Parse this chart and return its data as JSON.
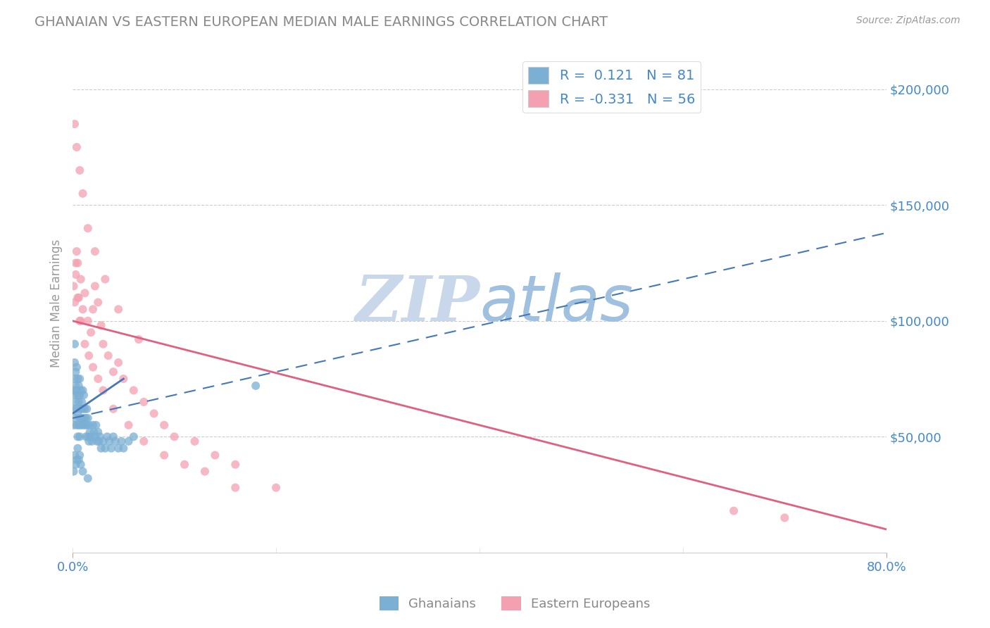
{
  "title": "GHANAIAN VS EASTERN EUROPEAN MEDIAN MALE EARNINGS CORRELATION CHART",
  "source": "Source: ZipAtlas.com",
  "ylabel": "Median Male Earnings",
  "yticks": [
    0,
    50000,
    100000,
    150000,
    200000
  ],
  "ytick_labels": [
    "",
    "$50,000",
    "$100,000",
    "$150,000",
    "$200,000"
  ],
  "xmin": 0.0,
  "xmax": 0.8,
  "ymin": 0,
  "ymax": 215000,
  "R_blue": 0.121,
  "N_blue": 81,
  "R_pink": -0.331,
  "N_pink": 56,
  "blue_color": "#7bafd4",
  "pink_color": "#f4a0b0",
  "blue_line_color": "#4477bb",
  "pink_line_color": "#e06080",
  "watermark_color": "#c8d8ea",
  "legend_label_blue": "Ghanaians",
  "legend_label_pink": "Eastern Europeans",
  "axis_color": "#4488cc",
  "blue_scatter_x": [
    0.001,
    0.001,
    0.001,
    0.002,
    0.002,
    0.002,
    0.002,
    0.003,
    0.003,
    0.003,
    0.003,
    0.004,
    0.004,
    0.004,
    0.004,
    0.005,
    0.005,
    0.005,
    0.005,
    0.006,
    0.006,
    0.006,
    0.007,
    0.007,
    0.007,
    0.007,
    0.008,
    0.008,
    0.008,
    0.009,
    0.009,
    0.01,
    0.01,
    0.01,
    0.011,
    0.011,
    0.012,
    0.012,
    0.013,
    0.013,
    0.014,
    0.014,
    0.015,
    0.015,
    0.016,
    0.016,
    0.017,
    0.018,
    0.019,
    0.02,
    0.021,
    0.022,
    0.023,
    0.024,
    0.025,
    0.026,
    0.027,
    0.028,
    0.03,
    0.032,
    0.034,
    0.036,
    0.038,
    0.04,
    0.042,
    0.045,
    0.048,
    0.05,
    0.055,
    0.06,
    0.001,
    0.002,
    0.003,
    0.004,
    0.005,
    0.006,
    0.007,
    0.008,
    0.01,
    0.015,
    0.18
  ],
  "blue_scatter_y": [
    62000,
    70000,
    55000,
    75000,
    82000,
    68000,
    90000,
    72000,
    65000,
    58000,
    78000,
    70000,
    62000,
    55000,
    80000,
    68000,
    75000,
    60000,
    50000,
    72000,
    65000,
    55000,
    68000,
    58000,
    75000,
    50000,
    62000,
    70000,
    55000,
    65000,
    58000,
    70000,
    62000,
    55000,
    68000,
    58000,
    62000,
    55000,
    58000,
    50000,
    62000,
    55000,
    58000,
    50000,
    55000,
    48000,
    52000,
    50000,
    48000,
    55000,
    52000,
    50000,
    55000,
    48000,
    52000,
    48000,
    50000,
    45000,
    48000,
    45000,
    50000,
    48000,
    45000,
    50000,
    48000,
    45000,
    48000,
    45000,
    48000,
    50000,
    35000,
    42000,
    38000,
    40000,
    45000,
    40000,
    42000,
    38000,
    35000,
    32000,
    72000
  ],
  "pink_scatter_x": [
    0.001,
    0.002,
    0.003,
    0.004,
    0.005,
    0.006,
    0.007,
    0.008,
    0.01,
    0.012,
    0.015,
    0.018,
    0.02,
    0.022,
    0.025,
    0.028,
    0.03,
    0.035,
    0.04,
    0.045,
    0.05,
    0.06,
    0.07,
    0.08,
    0.09,
    0.1,
    0.12,
    0.14,
    0.16,
    0.2,
    0.003,
    0.005,
    0.008,
    0.012,
    0.016,
    0.02,
    0.025,
    0.03,
    0.04,
    0.055,
    0.07,
    0.09,
    0.11,
    0.13,
    0.16,
    0.002,
    0.004,
    0.007,
    0.01,
    0.015,
    0.022,
    0.032,
    0.045,
    0.065,
    0.65,
    0.7
  ],
  "pink_scatter_y": [
    115000,
    108000,
    120000,
    130000,
    125000,
    110000,
    100000,
    118000,
    105000,
    112000,
    100000,
    95000,
    105000,
    115000,
    108000,
    98000,
    90000,
    85000,
    78000,
    82000,
    75000,
    70000,
    65000,
    60000,
    55000,
    50000,
    48000,
    42000,
    38000,
    28000,
    125000,
    110000,
    100000,
    90000,
    85000,
    80000,
    75000,
    70000,
    62000,
    55000,
    48000,
    42000,
    38000,
    35000,
    28000,
    185000,
    175000,
    165000,
    155000,
    140000,
    130000,
    118000,
    105000,
    92000,
    18000,
    15000
  ],
  "blue_trendline_x0": 0.0,
  "blue_trendline_y0": 58000,
  "blue_trendline_x1": 0.8,
  "blue_trendline_y1": 138000,
  "pink_trendline_x0": 0.0,
  "pink_trendline_y0": 100000,
  "pink_trendline_x1": 0.8,
  "pink_trendline_y1": 10000
}
